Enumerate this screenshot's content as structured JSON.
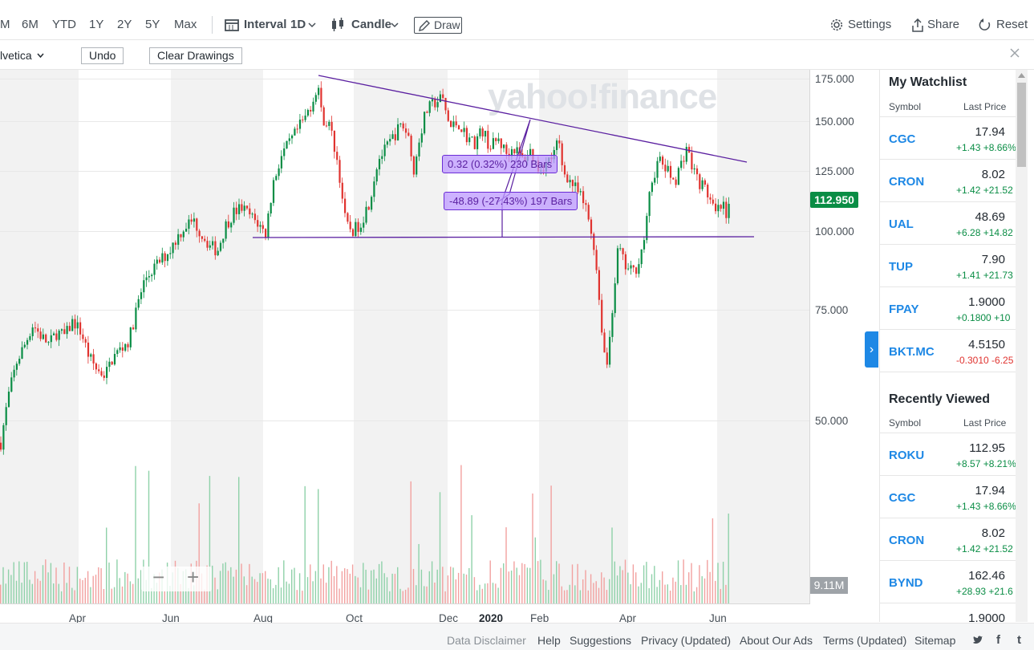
{
  "toolbar": {
    "ranges": [
      "M",
      "6M",
      "YTD",
      "1Y",
      "2Y",
      "5Y",
      "Max"
    ],
    "interval_label": "Interval",
    "interval_value": "1D",
    "chart_type": "Candle",
    "draw_label": "Draw",
    "settings_label": "Settings",
    "share_label": "Share",
    "reset_label": "Reset"
  },
  "drawing_toolbar": {
    "font": "lvetica",
    "undo_label": "Undo",
    "clear_label": "Clear Drawings"
  },
  "chart": {
    "watermark": "yahoo!finance",
    "last_price": "112.950",
    "volume_tag": "9.11M",
    "measure_1": "0.32 (0.32%) 230 Bars",
    "measure_2": "-48.89 (-27.43%) 197 Bars",
    "zoom_out": "−",
    "zoom_in": "+"
  },
  "chart_data": {
    "type": "candlestick",
    "x_tick_labels": [
      "Apr",
      "Jun",
      "Aug",
      "Oct",
      "Dec",
      "2020",
      "Feb",
      "Apr",
      "Jun"
    ],
    "y_tick_labels": [
      "175.000",
      "150.000",
      "125.000",
      "100.000",
      "75.000",
      "50.000"
    ],
    "ylim": [
      45,
      180
    ],
    "y_scale": "log",
    "close_path": [
      {
        "t": 0,
        "c": 46
      },
      {
        "t": 10,
        "c": 55
      },
      {
        "t": 20,
        "c": 62
      },
      {
        "t": 30,
        "c": 66
      },
      {
        "t": 40,
        "c": 71
      },
      {
        "t": 50,
        "c": 68
      },
      {
        "t": 60,
        "c": 66
      },
      {
        "t": 70,
        "c": 69
      },
      {
        "t": 80,
        "c": 68
      },
      {
        "t": 90,
        "c": 72
      },
      {
        "t": 100,
        "c": 69
      },
      {
        "t": 110,
        "c": 63
      },
      {
        "t": 120,
        "c": 60
      },
      {
        "t": 130,
        "c": 59
      },
      {
        "t": 140,
        "c": 63
      },
      {
        "t": 150,
        "c": 65
      },
      {
        "t": 160,
        "c": 67
      },
      {
        "t": 170,
        "c": 76
      },
      {
        "t": 180,
        "c": 84
      },
      {
        "t": 190,
        "c": 87
      },
      {
        "t": 200,
        "c": 90
      },
      {
        "t": 210,
        "c": 93
      },
      {
        "t": 220,
        "c": 98
      },
      {
        "t": 230,
        "c": 102
      },
      {
        "t": 240,
        "c": 104
      },
      {
        "t": 250,
        "c": 99
      },
      {
        "t": 260,
        "c": 95
      },
      {
        "t": 270,
        "c": 93
      },
      {
        "t": 280,
        "c": 102
      },
      {
        "t": 290,
        "c": 107
      },
      {
        "t": 300,
        "c": 109
      },
      {
        "t": 310,
        "c": 106
      },
      {
        "t": 320,
        "c": 103
      },
      {
        "t": 330,
        "c": 99
      },
      {
        "t": 340,
        "c": 120
      },
      {
        "t": 350,
        "c": 132
      },
      {
        "t": 360,
        "c": 138
      },
      {
        "t": 370,
        "c": 145
      },
      {
        "t": 380,
        "c": 152
      },
      {
        "t": 390,
        "c": 163
      },
      {
        "t": 395,
        "c": 173
      },
      {
        "t": 400,
        "c": 152
      },
      {
        "t": 410,
        "c": 147
      },
      {
        "t": 420,
        "c": 128
      },
      {
        "t": 430,
        "c": 102
      },
      {
        "t": 440,
        "c": 100
      },
      {
        "t": 450,
        "c": 104
      },
      {
        "t": 460,
        "c": 112
      },
      {
        "t": 470,
        "c": 130
      },
      {
        "t": 480,
        "c": 135
      },
      {
        "t": 490,
        "c": 142
      },
      {
        "t": 500,
        "c": 148
      },
      {
        "t": 510,
        "c": 140
      },
      {
        "t": 515,
        "c": 122
      },
      {
        "t": 520,
        "c": 138
      },
      {
        "t": 530,
        "c": 155
      },
      {
        "t": 540,
        "c": 160
      },
      {
        "t": 550,
        "c": 163
      },
      {
        "t": 560,
        "c": 146
      },
      {
        "t": 570,
        "c": 149
      },
      {
        "t": 580,
        "c": 142
      },
      {
        "t": 590,
        "c": 138
      },
      {
        "t": 600,
        "c": 145
      },
      {
        "t": 610,
        "c": 136
      },
      {
        "t": 620,
        "c": 140
      },
      {
        "t": 630,
        "c": 133
      },
      {
        "t": 640,
        "c": 136
      },
      {
        "t": 650,
        "c": 130
      },
      {
        "t": 660,
        "c": 134
      },
      {
        "t": 670,
        "c": 126
      },
      {
        "t": 680,
        "c": 128
      },
      {
        "t": 690,
        "c": 133
      },
      {
        "t": 695,
        "c": 140
      },
      {
        "t": 700,
        "c": 126
      },
      {
        "t": 710,
        "c": 120
      },
      {
        "t": 720,
        "c": 115
      },
      {
        "t": 730,
        "c": 108
      },
      {
        "t": 740,
        "c": 94
      },
      {
        "t": 745,
        "c": 80
      },
      {
        "t": 750,
        "c": 68
      },
      {
        "t": 755,
        "c": 60
      },
      {
        "t": 760,
        "c": 70
      },
      {
        "t": 765,
        "c": 82
      },
      {
        "t": 770,
        "c": 95
      },
      {
        "t": 775,
        "c": 90
      },
      {
        "t": 780,
        "c": 87
      },
      {
        "t": 790,
        "c": 86
      },
      {
        "t": 800,
        "c": 94
      },
      {
        "t": 805,
        "c": 103
      },
      {
        "t": 810,
        "c": 118
      },
      {
        "t": 820,
        "c": 130
      },
      {
        "t": 830,
        "c": 125
      },
      {
        "t": 840,
        "c": 120
      },
      {
        "t": 850,
        "c": 130
      },
      {
        "t": 855,
        "c": 137
      },
      {
        "t": 860,
        "c": 128
      },
      {
        "t": 870,
        "c": 120
      },
      {
        "t": 880,
        "c": 116
      },
      {
        "t": 890,
        "c": 106
      },
      {
        "t": 900,
        "c": 110
      },
      {
        "t": 905,
        "c": 103
      },
      {
        "t": 910,
        "c": 112.95
      }
    ],
    "volume_tag": "9.11M"
  },
  "watchlist": {
    "title": "My Watchlist",
    "col_symbol": "Symbol",
    "col_price": "Last Price",
    "items": [
      {
        "symbol": "CGC",
        "price": "17.94",
        "change": "+1.43",
        "pct": "+8.66%",
        "dir": "up"
      },
      {
        "symbol": "CRON",
        "price": "8.02",
        "change": "+1.42",
        "pct": "+21.52",
        "dir": "up"
      },
      {
        "symbol": "UAL",
        "price": "48.69",
        "change": "+6.28",
        "pct": "+14.82",
        "dir": "up"
      },
      {
        "symbol": "TUP",
        "price": "7.90",
        "change": "+1.41",
        "pct": "+21.73",
        "dir": "up"
      },
      {
        "symbol": "FPAY",
        "price": "1.9000",
        "change": "+0.1800",
        "pct": "+10",
        "dir": "up"
      },
      {
        "symbol": "BKT.MC",
        "price": "4.5150",
        "change": "-0.3010",
        "pct": "-6.25",
        "dir": "down"
      }
    ]
  },
  "recent": {
    "title": "Recently Viewed",
    "col_symbol": "Symbol",
    "col_price": "Last Price",
    "items": [
      {
        "symbol": "ROKU",
        "price": "112.95",
        "change": "+8.57",
        "pct": "+8.21%",
        "dir": "up"
      },
      {
        "symbol": "CGC",
        "price": "17.94",
        "change": "+1.43",
        "pct": "+8.66%",
        "dir": "up"
      },
      {
        "symbol": "CRON",
        "price": "8.02",
        "change": "+1.42",
        "pct": "+21.52",
        "dir": "up"
      },
      {
        "symbol": "BYND",
        "price": "162.46",
        "change": "+28.93",
        "pct": "+21.6",
        "dir": "up"
      },
      {
        "symbol": "",
        "price": "1.9000",
        "change": "",
        "pct": "",
        "dir": "up"
      }
    ]
  },
  "footer": {
    "links": [
      "Data Disclaimer",
      "Help",
      "Suggestions",
      "Privacy (Updated)",
      "About Our Ads",
      "Terms (Updated)",
      "Sitemap"
    ]
  },
  "colors": {
    "up": "#0a8d45",
    "down": "#e0332f",
    "link": "#1e88e5",
    "drawing": "#5a1fa0"
  }
}
